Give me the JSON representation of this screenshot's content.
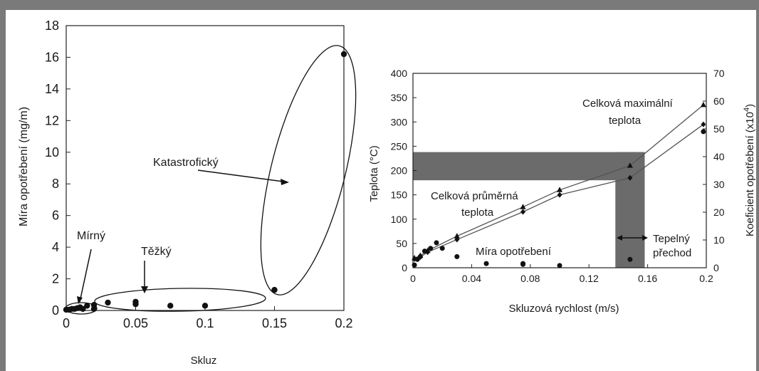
{
  "chart_data": [
    {
      "type": "scatter",
      "xlabel": "Skluz",
      "ylabel": "Míra opotřebení (mg/m)",
      "xlim": [
        0,
        0.2
      ],
      "ylim": [
        0,
        18
      ],
      "xticks": [
        "0",
        "0.05",
        "0.1",
        "0.15",
        "0.2"
      ],
      "yticks": [
        "0",
        "2",
        "4",
        "6",
        "8",
        "10",
        "12",
        "14",
        "16",
        "18"
      ],
      "points": [
        {
          "x": 0.0,
          "y": 0.05
        },
        {
          "x": 0.002,
          "y": 0.05
        },
        {
          "x": 0.004,
          "y": 0.1
        },
        {
          "x": 0.006,
          "y": 0.1
        },
        {
          "x": 0.008,
          "y": 0.15
        },
        {
          "x": 0.01,
          "y": 0.2
        },
        {
          "x": 0.012,
          "y": 0.1
        },
        {
          "x": 0.015,
          "y": 0.3
        },
        {
          "x": 0.02,
          "y": 0.35
        },
        {
          "x": 0.02,
          "y": 0.1
        },
        {
          "x": 0.03,
          "y": 0.5
        },
        {
          "x": 0.05,
          "y": 0.55
        },
        {
          "x": 0.05,
          "y": 0.4
        },
        {
          "x": 0.075,
          "y": 0.3
        },
        {
          "x": 0.1,
          "y": 0.3
        },
        {
          "x": 0.15,
          "y": 1.3
        },
        {
          "x": 0.2,
          "y": 16.2
        }
      ],
      "annotations": [
        "Mírný",
        "Těžký",
        "Katastrofický"
      ]
    },
    {
      "type": "line",
      "xlabel": "Skluzová rychlost (m/s)",
      "ylabel": "Teplota (°C)",
      "y2label": "Koeficient opotřebení (x10",
      "y2label_sup": "4",
      "y2label_end": ")",
      "xlim": [
        0,
        0.2
      ],
      "ylim": [
        0,
        400
      ],
      "y2lim": [
        0,
        70
      ],
      "xticks": [
        "0",
        "0.04",
        "0.08",
        "0.12",
        "0.16",
        "0.2"
      ],
      "yticks": [
        "0",
        "50",
        "100",
        "150",
        "200",
        "250",
        "300",
        "350",
        "400"
      ],
      "y2ticks": [
        "0",
        "10",
        "20",
        "30",
        "40",
        "50",
        "60",
        "70"
      ],
      "series": [
        {
          "name": "Celková maximální teplota",
          "marker": "triangle",
          "x": [
            0.001,
            0.005,
            0.01,
            0.03,
            0.075,
            0.1,
            0.148,
            0.198
          ],
          "y": [
            20,
            25,
            35,
            65,
            125,
            160,
            210,
            335
          ]
        },
        {
          "name": "Celková průměrná teplota",
          "marker": "diamond",
          "x": [
            0.001,
            0.005,
            0.01,
            0.03,
            0.075,
            0.1,
            0.148,
            0.198
          ],
          "y": [
            18,
            22,
            32,
            58,
            115,
            150,
            185,
            295
          ]
        },
        {
          "name": "Míra opotřebení",
          "marker": "circle",
          "axis": "y2",
          "x": [
            0.001,
            0.003,
            0.005,
            0.008,
            0.012,
            0.016,
            0.02,
            0.03,
            0.05,
            0.075,
            0.075,
            0.1,
            0.148,
            0.198
          ],
          "y": [
            1,
            3,
            4,
            6,
            7,
            9,
            7,
            4,
            1.5,
            1.5,
            1.2,
            0.8,
            3,
            49
          ]
        }
      ],
      "bands": [
        {
          "axis": "y",
          "from": 180,
          "to": 238
        },
        {
          "axis": "x",
          "from": 0.138,
          "to": 0.158
        }
      ],
      "annotations": {
        "max_line1": "Celková maximální",
        "max_line2": "teplota",
        "avg_line1": "Celková průměrná",
        "avg_line2": "teplota",
        "wear": "Míra opotřebení",
        "trans_line1": "Tepelný",
        "trans_line2": "přechod"
      },
      "colors": {
        "band": "#6b6b6b",
        "lines": "#555555",
        "markers": "#111111"
      }
    }
  ]
}
